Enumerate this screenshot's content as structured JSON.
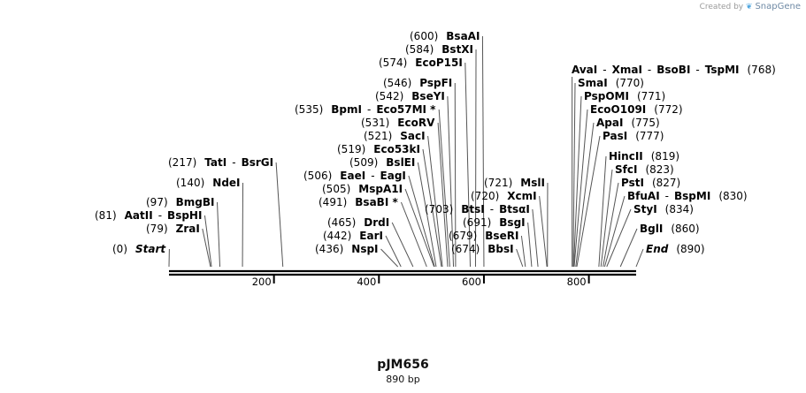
{
  "plasmid": {
    "name": "pJM656",
    "length_label": "890 bp",
    "length": 890
  },
  "brand": {
    "created_by": "Created by",
    "name": "SnapGene"
  },
  "axis": {
    "ticks": [
      200,
      400,
      600,
      800
    ]
  },
  "features": [
    {
      "parts": [
        {
          "t": "(0)",
          "b": false
        },
        {
          "t": "Start",
          "b": true,
          "i": true
        }
      ],
      "pos": 0
    },
    {
      "parts": [
        {
          "t": "(79)",
          "b": false
        },
        {
          "t": "ZraI",
          "b": true
        }
      ],
      "pos": 79
    },
    {
      "parts": [
        {
          "t": "(81)",
          "b": false
        },
        {
          "t": "AatII",
          "b": true
        },
        {
          "t": "-",
          "b": false
        },
        {
          "t": "BspHI",
          "b": true
        }
      ],
      "pos": 81
    },
    {
      "parts": [
        {
          "t": "(97)",
          "b": false
        },
        {
          "t": "BmgBI",
          "b": true
        }
      ],
      "pos": 97
    },
    {
      "parts": [
        {
          "t": "(140)",
          "b": false
        },
        {
          "t": "NdeI",
          "b": true
        }
      ],
      "pos": 140
    },
    {
      "parts": [
        {
          "t": "(217)",
          "b": false
        },
        {
          "t": "TatI",
          "b": true
        },
        {
          "t": "-",
          "b": false
        },
        {
          "t": "BsrGI",
          "b": true
        }
      ],
      "pos": 217
    },
    {
      "parts": [
        {
          "t": "(436)",
          "b": false
        },
        {
          "t": "NspI",
          "b": true
        }
      ],
      "pos": 436
    },
    {
      "parts": [
        {
          "t": "(442)",
          "b": false
        },
        {
          "t": "EarI",
          "b": true
        }
      ],
      "pos": 442
    },
    {
      "parts": [
        {
          "t": "(465)",
          "b": false
        },
        {
          "t": "DrdI",
          "b": true
        }
      ],
      "pos": 465
    },
    {
      "parts": [
        {
          "t": "(491)",
          "b": false
        },
        {
          "t": "BsaBI *",
          "b": true
        }
      ],
      "pos": 491
    },
    {
      "parts": [
        {
          "t": "(505)",
          "b": false
        },
        {
          "t": "MspA1I",
          "b": true
        }
      ],
      "pos": 505
    },
    {
      "parts": [
        {
          "t": "(506)",
          "b": false
        },
        {
          "t": "EaeI",
          "b": true
        },
        {
          "t": "-",
          "b": false
        },
        {
          "t": "EagI",
          "b": true
        }
      ],
      "pos": 506
    },
    {
      "parts": [
        {
          "t": "(509)",
          "b": false
        },
        {
          "t": "BslEI",
          "b": true
        }
      ],
      "pos": 509
    },
    {
      "parts": [
        {
          "t": "(519)",
          "b": false
        },
        {
          "t": "Eco53kI",
          "b": true
        }
      ],
      "pos": 519
    },
    {
      "parts": [
        {
          "t": "(521)",
          "b": false
        },
        {
          "t": "SacI",
          "b": true
        }
      ],
      "pos": 521
    },
    {
      "parts": [
        {
          "t": "(531)",
          "b": false
        },
        {
          "t": "EcoRV",
          "b": true
        }
      ],
      "pos": 531
    },
    {
      "parts": [
        {
          "t": "(535)",
          "b": false
        },
        {
          "t": "BpmI",
          "b": true
        },
        {
          "t": "-",
          "b": false
        },
        {
          "t": "Eco57MI *",
          "b": true
        }
      ],
      "pos": 535
    },
    {
      "parts": [
        {
          "t": "(542)",
          "b": false
        },
        {
          "t": "BseYI",
          "b": true
        }
      ],
      "pos": 542
    },
    {
      "parts": [
        {
          "t": "(546)",
          "b": false
        },
        {
          "t": "PspFI",
          "b": true
        }
      ],
      "pos": 546
    },
    {
      "parts": [
        {
          "t": "(574)",
          "b": false
        },
        {
          "t": "EcoP15I",
          "b": true
        }
      ],
      "pos": 574
    },
    {
      "parts": [
        {
          "t": "(584)",
          "b": false
        },
        {
          "t": "BstXI",
          "b": true
        }
      ],
      "pos": 584
    },
    {
      "parts": [
        {
          "t": "(600)",
          "b": false
        },
        {
          "t": "BsaAI",
          "b": true
        }
      ],
      "pos": 600
    },
    {
      "parts": [
        {
          "t": "(674)",
          "b": false
        },
        {
          "t": "BbsI",
          "b": true
        }
      ],
      "pos": 674
    },
    {
      "parts": [
        {
          "t": "(679)",
          "b": false
        },
        {
          "t": "BseRI",
          "b": true
        }
      ],
      "pos": 679
    },
    {
      "parts": [
        {
          "t": "(691)",
          "b": false
        },
        {
          "t": "BsgI",
          "b": true
        }
      ],
      "pos": 691
    },
    {
      "parts": [
        {
          "t": "(703)",
          "b": false
        },
        {
          "t": "BtsI",
          "b": true
        },
        {
          "t": "-",
          "b": false
        },
        {
          "t": "BtsαI",
          "b": true
        }
      ],
      "pos": 703
    },
    {
      "parts": [
        {
          "t": "(720)",
          "b": false
        },
        {
          "t": "XcmI",
          "b": true
        }
      ],
      "pos": 720
    },
    {
      "parts": [
        {
          "t": "(721)",
          "b": false
        },
        {
          "t": "MslI",
          "b": true
        }
      ],
      "pos": 721
    },
    {
      "parts": [
        {
          "t": "AvaI",
          "b": true
        },
        {
          "t": "-",
          "b": false
        },
        {
          "t": "XmaI",
          "b": true
        },
        {
          "t": "-",
          "b": false
        },
        {
          "t": "BsoBI",
          "b": true
        },
        {
          "t": "-",
          "b": false
        },
        {
          "t": "TspMI",
          "b": true
        },
        {
          "t": "(768)",
          "b": false
        }
      ],
      "pos": 768
    },
    {
      "parts": [
        {
          "t": "SmaI",
          "b": true
        },
        {
          "t": "(770)",
          "b": false
        }
      ],
      "pos": 770
    },
    {
      "parts": [
        {
          "t": "PspOMI",
          "b": true
        },
        {
          "t": "(771)",
          "b": false
        }
      ],
      "pos": 771
    },
    {
      "parts": [
        {
          "t": "EcoO109I",
          "b": true
        },
        {
          "t": "(772)",
          "b": false
        }
      ],
      "pos": 772
    },
    {
      "parts": [
        {
          "t": "ApaI",
          "b": true
        },
        {
          "t": "(775)",
          "b": false
        }
      ],
      "pos": 775
    },
    {
      "parts": [
        {
          "t": "PasI",
          "b": true
        },
        {
          "t": "(777)",
          "b": false
        }
      ],
      "pos": 777
    },
    {
      "parts": [
        {
          "t": "HincII",
          "b": true
        },
        {
          "t": "(819)",
          "b": false
        }
      ],
      "pos": 819
    },
    {
      "parts": [
        {
          "t": "SfcI",
          "b": true
        },
        {
          "t": "(823)",
          "b": false
        }
      ],
      "pos": 823
    },
    {
      "parts": [
        {
          "t": "PstI",
          "b": true
        },
        {
          "t": "(827)",
          "b": false
        }
      ],
      "pos": 827
    },
    {
      "parts": [
        {
          "t": "BfuAI",
          "b": true
        },
        {
          "t": "-",
          "b": false
        },
        {
          "t": "BspMI",
          "b": true
        },
        {
          "t": "(830)",
          "b": false
        }
      ],
      "pos": 830
    },
    {
      "parts": [
        {
          "t": "StyI",
          "b": true
        },
        {
          "t": "(834)",
          "b": false
        }
      ],
      "pos": 834
    },
    {
      "parts": [
        {
          "t": "BglI",
          "b": true
        },
        {
          "t": "(860)",
          "b": false
        }
      ],
      "pos": 860
    },
    {
      "parts": [
        {
          "t": "End",
          "b": true,
          "i": true
        },
        {
          "t": "(890)",
          "b": false
        }
      ],
      "pos": 890
    }
  ]
}
